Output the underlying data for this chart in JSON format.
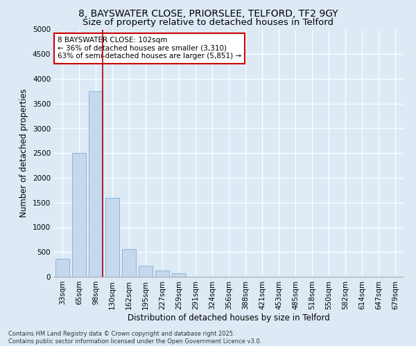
{
  "title1": "8, BAYSWATER CLOSE, PRIORSLEE, TELFORD, TF2 9GY",
  "title2": "Size of property relative to detached houses in Telford",
  "xlabel": "Distribution of detached houses by size in Telford",
  "ylabel": "Number of detached properties",
  "categories": [
    "33sqm",
    "65sqm",
    "98sqm",
    "130sqm",
    "162sqm",
    "195sqm",
    "227sqm",
    "259sqm",
    "291sqm",
    "324sqm",
    "356sqm",
    "388sqm",
    "421sqm",
    "453sqm",
    "485sqm",
    "518sqm",
    "550sqm",
    "582sqm",
    "614sqm",
    "647sqm",
    "679sqm"
  ],
  "values": [
    370,
    2500,
    3750,
    1600,
    560,
    230,
    120,
    70,
    0,
    0,
    0,
    0,
    0,
    0,
    0,
    0,
    0,
    0,
    0,
    0,
    0
  ],
  "bar_color": "#c5d8ee",
  "bar_edge_color": "#7aafd4",
  "vline_color": "#aa0000",
  "annotation_text": "8 BAYSWATER CLOSE: 102sqm\n← 36% of detached houses are smaller (3,310)\n63% of semi-detached houses are larger (5,851) →",
  "annotation_box_color": "#ffffff",
  "annotation_box_edge": "#cc0000",
  "ylim_max": 5000,
  "yticks": [
    0,
    500,
    1000,
    1500,
    2000,
    2500,
    3000,
    3500,
    4000,
    4500,
    5000
  ],
  "bg_color": "#ddeaf6",
  "plot_bg_color": "#ddeaf6",
  "footer": "Contains HM Land Registry data © Crown copyright and database right 2025.\nContains public sector information licensed under the Open Government Licence v3.0.",
  "title_fontsize": 10,
  "subtitle_fontsize": 9.5,
  "axis_label_fontsize": 8.5,
  "tick_fontsize": 7.5,
  "annotation_fontsize": 7.5,
  "footer_fontsize": 6
}
